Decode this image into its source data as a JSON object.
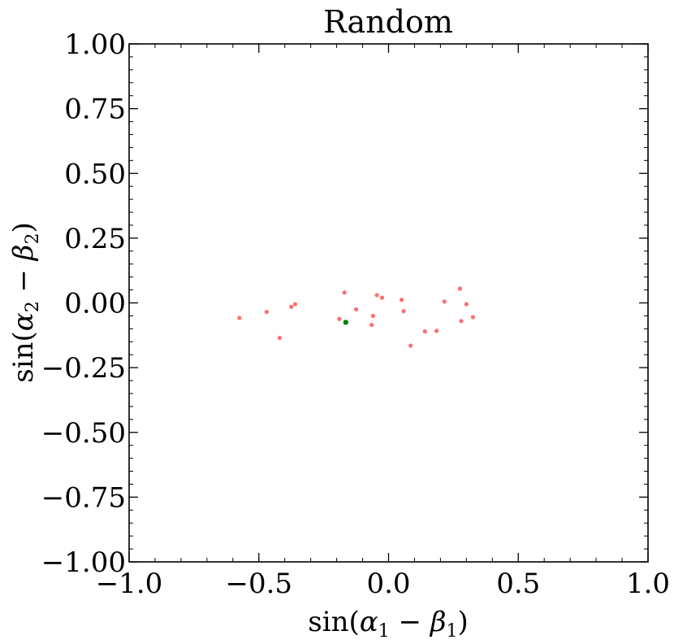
{
  "chart_data": {
    "type": "scatter",
    "title": "Random",
    "xlabel": {
      "prefix": "sin(",
      "a": "α",
      "a_sub": "1",
      "op": " − ",
      "b": "β",
      "b_sub": "1",
      "suffix": ")"
    },
    "ylabel": {
      "prefix": "sin(",
      "a": "α",
      "a_sub": "2",
      "op": " − ",
      "b": "β",
      "b_sub": "2",
      "suffix": ")"
    },
    "xlim": [
      -1.0,
      1.0
    ],
    "ylim": [
      -1.0,
      1.0
    ],
    "xticks": [
      -1.0,
      -0.5,
      0.0,
      0.5,
      1.0
    ],
    "xtick_labels": [
      "−1.0",
      "−0.5",
      "0.0",
      "0.5",
      "1.0"
    ],
    "yticks": [
      -1.0,
      -0.75,
      -0.5,
      -0.25,
      0.0,
      0.25,
      0.5,
      0.75,
      1.0
    ],
    "ytick_labels": [
      "−1.00",
      "−0.75",
      "−0.50",
      "−0.25",
      "0.00",
      "0.25",
      "0.50",
      "0.75",
      "1.00"
    ],
    "grid": false,
    "series": [
      {
        "color": "#ff5555",
        "points": [
          {
            "x": -0.575,
            "y": -0.058
          },
          {
            "x": -0.47,
            "y": -0.035
          },
          {
            "x": -0.42,
            "y": -0.135
          },
          {
            "x": -0.375,
            "y": -0.015
          },
          {
            "x": -0.36,
            "y": -0.005
          },
          {
            "x": -0.19,
            "y": -0.062
          },
          {
            "x": -0.17,
            "y": 0.04
          },
          {
            "x": -0.125,
            "y": -0.025
          },
          {
            "x": -0.065,
            "y": -0.085
          },
          {
            "x": -0.06,
            "y": -0.05
          },
          {
            "x": -0.045,
            "y": 0.03
          },
          {
            "x": -0.025,
            "y": 0.02
          },
          {
            "x": 0.05,
            "y": 0.012
          },
          {
            "x": 0.058,
            "y": -0.032
          },
          {
            "x": 0.085,
            "y": -0.165
          },
          {
            "x": 0.14,
            "y": -0.11
          },
          {
            "x": 0.185,
            "y": -0.108
          },
          {
            "x": 0.215,
            "y": 0.005
          },
          {
            "x": 0.275,
            "y": 0.055
          },
          {
            "x": 0.28,
            "y": -0.07
          },
          {
            "x": 0.3,
            "y": -0.005
          },
          {
            "x": 0.325,
            "y": -0.055
          }
        ]
      },
      {
        "color": "#008000",
        "points": [
          {
            "x": -0.165,
            "y": -0.075
          }
        ]
      }
    ]
  }
}
